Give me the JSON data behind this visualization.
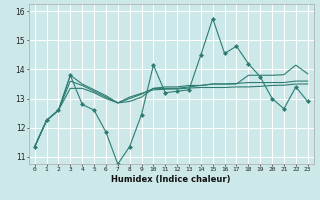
{
  "xlabel": "Humidex (Indice chaleur)",
  "xlim": [
    -0.5,
    23.5
  ],
  "ylim": [
    10.75,
    16.25
  ],
  "yticks": [
    11,
    12,
    13,
    14,
    15,
    16
  ],
  "xtick_labels": [
    "0",
    "1",
    "2",
    "3",
    "4",
    "5",
    "6",
    "7",
    "8",
    "9",
    "10",
    "11",
    "12",
    "13",
    "14",
    "15",
    "16",
    "17",
    "18",
    "19",
    "20",
    "21",
    "22",
    "23"
  ],
  "bg_color": "#cce8e8",
  "grid_color": "#ffffff",
  "line_color": "#2e7d72",
  "lines": [
    [
      11.35,
      12.25,
      12.6,
      13.8,
      12.8,
      12.6,
      11.85,
      10.75,
      11.35,
      12.45,
      14.15,
      13.2,
      13.25,
      13.3,
      14.5,
      15.75,
      14.55,
      14.8,
      14.2,
      13.75,
      13.0,
      12.65,
      13.4,
      12.9
    ],
    [
      11.35,
      12.25,
      12.6,
      13.8,
      13.5,
      13.3,
      13.1,
      12.85,
      12.9,
      13.05,
      13.35,
      13.35,
      13.35,
      13.4,
      13.45,
      13.5,
      13.5,
      13.5,
      13.8,
      13.8,
      13.8,
      13.82,
      14.15,
      13.85
    ],
    [
      11.35,
      12.25,
      12.6,
      13.6,
      13.45,
      13.25,
      13.05,
      12.85,
      13.0,
      13.15,
      13.35,
      13.4,
      13.4,
      13.45,
      13.45,
      13.5,
      13.5,
      13.52,
      13.55,
      13.55,
      13.55,
      13.55,
      13.6,
      13.6
    ],
    [
      11.35,
      12.25,
      12.6,
      13.35,
      13.35,
      13.2,
      13.0,
      12.85,
      13.05,
      13.18,
      13.3,
      13.32,
      13.33,
      13.36,
      13.38,
      13.38,
      13.38,
      13.4,
      13.4,
      13.42,
      13.45,
      13.46,
      13.5,
      13.5
    ]
  ]
}
